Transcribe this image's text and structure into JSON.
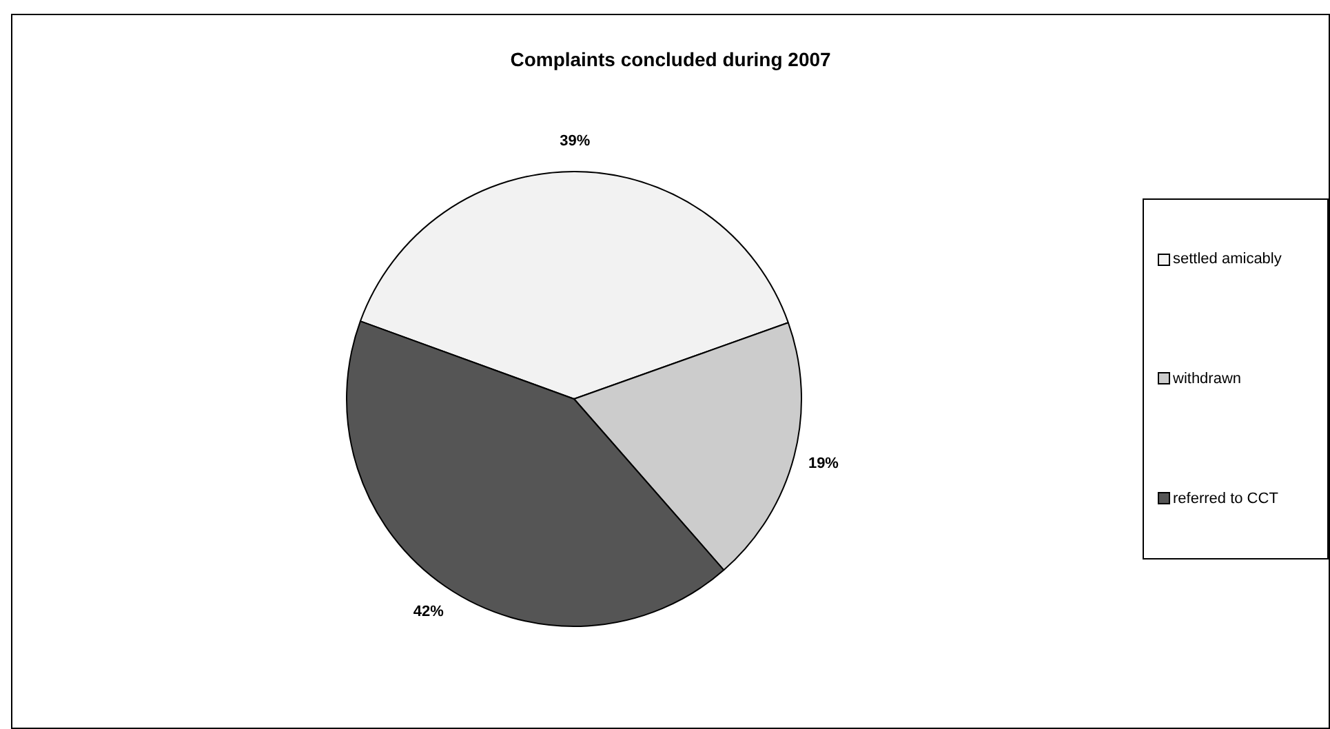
{
  "chart_data": {
    "type": "pie",
    "title": "Complaints concluded during 2007",
    "categories": [
      "settled amicably",
      "withdrawn",
      "referred to CCT"
    ],
    "values": [
      39,
      19,
      42
    ],
    "colors": [
      "#f2f2f2",
      "#cccccc",
      "#555555"
    ],
    "value_labels": [
      "39%",
      "19%",
      "42%"
    ],
    "legend": "right"
  }
}
